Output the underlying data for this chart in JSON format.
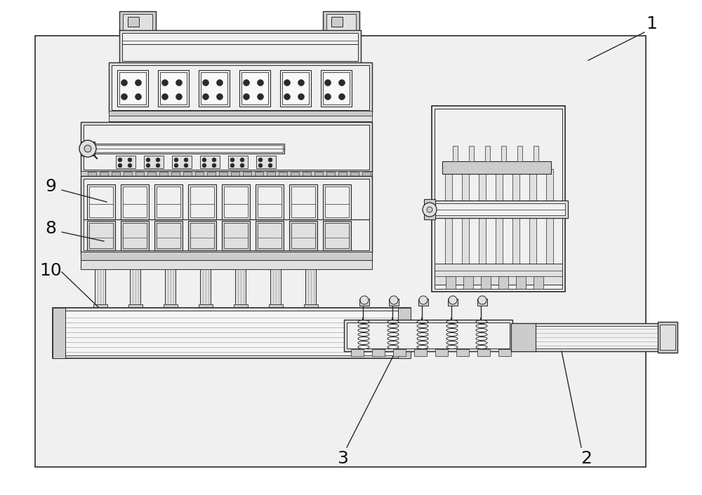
{
  "bg_color": "#ffffff",
  "lc": "#2a2a2a",
  "fc0": "#ffffff",
  "fc1": "#f0f0f0",
  "fc2": "#e0e0e0",
  "fc3": "#cccccc",
  "fc4": "#b8b8b8",
  "fc5": "#a0a0a0",
  "figsize": [
    10.0,
    7.06
  ],
  "dpi": 100
}
